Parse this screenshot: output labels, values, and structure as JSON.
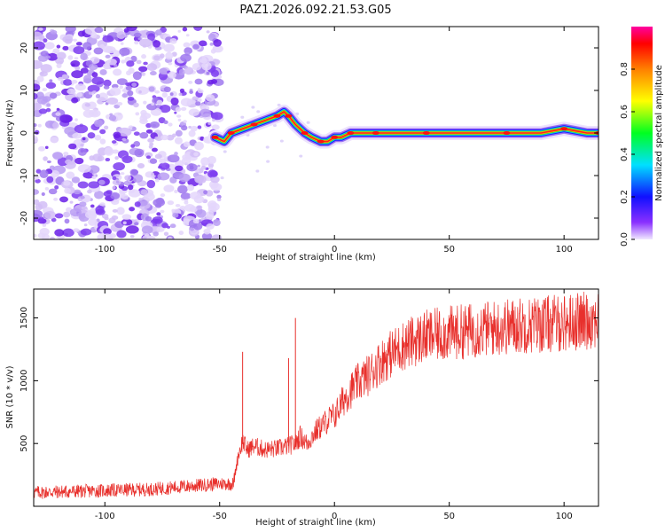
{
  "title": "PAZ1.2026.092.21.53.G05",
  "top_panel": {
    "xlabel": "Height of straight line (km)",
    "ylabel": "Frequency (Hz)",
    "xticks": [
      "-100",
      "-50",
      "0",
      "50",
      "100"
    ],
    "yticks": [
      "20",
      "10",
      "0",
      "-10",
      "-20"
    ],
    "colorbar_label": "Normalized spectral amplitude",
    "colorbar_ticks": [
      "0.0",
      "0.2",
      "0.4",
      "0.6",
      "0.8"
    ]
  },
  "bottom_panel": {
    "xlabel": "Height of straight line (km)",
    "ylabel": "SNR (10 * v/v)",
    "xticks": [
      "-100",
      "-50",
      "0",
      "50",
      "100"
    ],
    "yticks": [
      "1500",
      "1000",
      "500"
    ]
  },
  "chart_data": [
    {
      "type": "heatmap",
      "title": "PAZ1.2026.092.21.53.G05",
      "xlabel": "Height of straight line (km)",
      "ylabel": "Frequency (Hz)",
      "xlim": [
        -131,
        115
      ],
      "ylim": [
        -25,
        25
      ],
      "colorbar": {
        "label": "Normalized spectral amplitude",
        "range": [
          0,
          1
        ]
      },
      "noise_region_x": [
        -131,
        -50
      ],
      "ridge": {
        "x": [
          -52,
          -48,
          -45,
          -40,
          -35,
          -30,
          -25,
          -22,
          -20,
          -17,
          -13,
          -10,
          -6,
          -3,
          0,
          3,
          7,
          12,
          18,
          25,
          40,
          60,
          75,
          90,
          100,
          110,
          115
        ],
        "y": [
          -1,
          -2,
          0,
          1,
          2,
          3,
          4,
          5,
          4,
          2,
          0,
          -1,
          -2,
          -2,
          -1,
          -1,
          0,
          0,
          0,
          0,
          0,
          0,
          0,
          0,
          1,
          0,
          0
        ]
      }
    },
    {
      "type": "line",
      "xlabel": "Height of straight line (km)",
      "ylabel": "SNR (10 * v/v)",
      "xlim": [
        -131,
        115
      ],
      "ylim": [
        0,
        1730
      ],
      "series": [
        {
          "name": "SNR",
          "color": "#e8302c",
          "x": [
            -131,
            -120,
            -110,
            -100,
            -90,
            -80,
            -70,
            -60,
            -50,
            -44,
            -42,
            -40,
            -38,
            -35,
            -30,
            -25,
            -20,
            -17,
            -15,
            -12,
            -8,
            -5,
            -2,
            0,
            5,
            10,
            15,
            20,
            25,
            30,
            35,
            40,
            50,
            60,
            70,
            80,
            90,
            100,
            110,
            115
          ],
          "y": [
            110,
            115,
            120,
            125,
            130,
            135,
            150,
            165,
            180,
            180,
            400,
            520,
            450,
            480,
            450,
            460,
            480,
            500,
            560,
            500,
            600,
            650,
            700,
            720,
            880,
            980,
            1050,
            1150,
            1220,
            1280,
            1320,
            1350,
            1380,
            1400,
            1420,
            1440,
            1450,
            1460,
            1480,
            1500
          ],
          "spikes": [
            {
              "x": -40,
              "y": 1230
            },
            {
              "x": -17,
              "y": 1500
            },
            {
              "x": -20,
              "y": 1180
            }
          ]
        }
      ]
    }
  ],
  "colors": {
    "noise_purple": "#8a3cf0",
    "ridge_red": "#e8302c",
    "line_red": "#e8302c"
  }
}
